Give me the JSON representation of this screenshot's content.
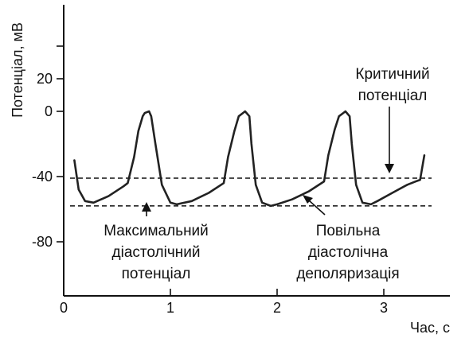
{
  "chart_data": {
    "type": "line",
    "xlabel": "Час, с",
    "ylabel": "Потенціал, мВ",
    "xlim": [
      0,
      3.6
    ],
    "ylim": [
      -110,
      55
    ],
    "x_ticks": [
      0,
      1,
      2,
      3
    ],
    "x_tick_labels": [
      "0",
      "1",
      "2",
      "3"
    ],
    "y_ticks": [
      20,
      0,
      -40,
      -80
    ],
    "y_tick_labels": [
      "20",
      "0",
      "-40",
      "-80"
    ],
    "grid": false,
    "series": [
      {
        "x": [
          0.1,
          0.14,
          0.2,
          0.28,
          0.42,
          0.56,
          0.6,
          0.66,
          0.7,
          0.74,
          0.76,
          0.8,
          0.82,
          0.86,
          0.92,
          1.0,
          1.06,
          1.2,
          1.36,
          1.5,
          1.54,
          1.6,
          1.64,
          1.68,
          1.7,
          1.74,
          1.76,
          1.8,
          1.86,
          1.94,
          2.0,
          2.14,
          2.3,
          2.44,
          2.48,
          2.54,
          2.58,
          2.62,
          2.64,
          2.68,
          2.7,
          2.74,
          2.8,
          2.88,
          2.94,
          3.08,
          3.22,
          3.3,
          3.34,
          3.38
        ],
        "y": [
          -30,
          -48,
          -55,
          -56,
          -52,
          -46,
          -44,
          -28,
          -12,
          -3,
          -1,
          0,
          -3,
          -20,
          -45,
          -56,
          -57,
          -55,
          -50,
          -44,
          -28,
          -12,
          -3,
          -1,
          0,
          -3,
          -20,
          -45,
          -56,
          -58,
          -57,
          -54,
          -49,
          -43,
          -27,
          -11,
          -3,
          -1,
          0,
          -3,
          -20,
          -45,
          -56,
          -57,
          -55,
          -50,
          -45,
          -43,
          -42,
          -27
        ]
      }
    ],
    "reference_lines": [
      {
        "y": -41
      },
      {
        "y": -58
      }
    ],
    "annotations": {
      "critical_line1": "Критичний",
      "critical_line2": "потенціал",
      "max_line1": "Максимальний",
      "max_line2": "діастолічний",
      "max_line3": "потенціал",
      "slow_line1": "Повільна",
      "slow_line2": "діастолічна",
      "slow_line3": "деполяризація"
    }
  }
}
